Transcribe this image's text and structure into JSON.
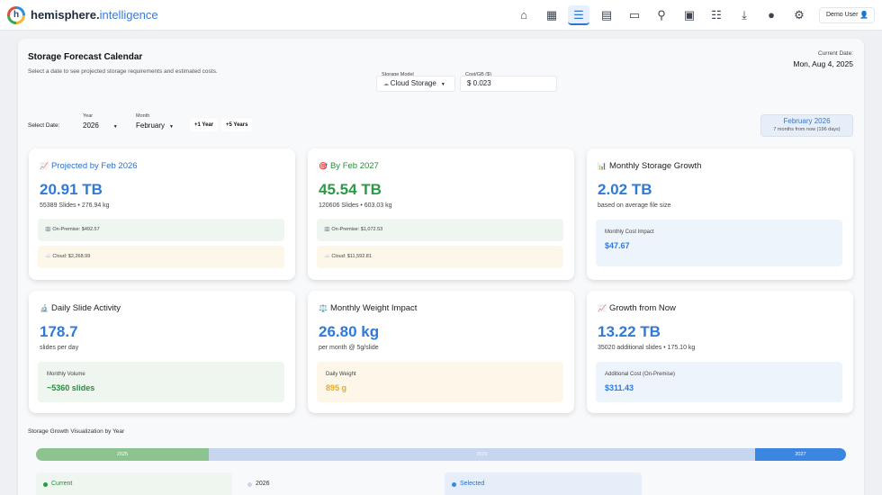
{
  "app": {
    "brand_main": "hemisphere.",
    "brand_accent": "intelligence",
    "logo_letter": "h",
    "user_label": "Demo User",
    "nav_icons": [
      "home-icon",
      "dashboard-icon",
      "list-icon",
      "calendar-icon",
      "folder-icon",
      "microscope-icon",
      "clipboard-icon",
      "sliders-icon",
      "download-icon",
      "account-icon",
      "gear-icon"
    ],
    "colors": {
      "accent": "#2f74d0",
      "green": "#2b9a44",
      "yellow": "#f2b632"
    }
  },
  "page": {
    "title": "Storage Forecast Calendar",
    "subtitle": "Select a date to see projected storage requirements and estimated costs.",
    "current_date_label": "Current Date:",
    "current_date": "Mon, Aug 4, 2025"
  },
  "controls": {
    "storage_model_label": "Storage Model",
    "storage_model_value": "Cloud Storage",
    "cost_label": "Cost/GB ($)",
    "cost_value": "$ 0.023",
    "select_date_label": "Select Date:",
    "year_label": "Year",
    "year_value": "2026",
    "month_label": "Month",
    "month_value": "February",
    "plus_one_year": "+1 Year",
    "plus_five_years": "+5 Years",
    "selected_month": "February 2026",
    "selected_offset": "7 months from now (196 days)"
  },
  "cards": {
    "projected": {
      "icon": "📈",
      "title": "Projected by Feb 2026",
      "value": "20.91 TB",
      "sub": "55389 Slides • 276.94 kg",
      "onprem": "🏢 On-Premise: $492.57",
      "cloud": "☁️ Cloud: $2,268.99"
    },
    "target": {
      "icon": "🎯",
      "title": "By Feb 2027",
      "value": "45.54 TB",
      "sub": "120606 Slides • 603.03 kg",
      "onprem": "🏢 On-Premise: $1,072.53",
      "cloud": "☁️ Cloud: $11,592.81"
    },
    "growth": {
      "icon": "📊",
      "title": "Monthly Storage Growth",
      "value": "2.02 TB",
      "sub": "based on average file size",
      "box_label": "Monthly Cost Impact",
      "box_value": "$47.67"
    },
    "daily": {
      "icon": "🔬",
      "title": "Daily Slide Activity",
      "value": "178.7",
      "sub": "slides per day",
      "box_label": "Monthly Volume",
      "box_value": "~5360 slides"
    },
    "weight": {
      "icon": "⚖️",
      "title": "Monthly Weight Impact",
      "value": "26.80 kg",
      "sub": "per month @ 5g/slide",
      "box_label": "Daily Weight",
      "box_value": "895 g"
    },
    "fromnow": {
      "icon": "📈",
      "title": "Growth from Now",
      "value": "13.22 TB",
      "sub": "35020 additional slides • 175.10 kg",
      "box_label": "Additional Cost (On-Premise)",
      "box_value": "$311.43"
    }
  },
  "viz": {
    "title": "Storage Growth Visualization by Year",
    "years": [
      "2025",
      "2026",
      "2027"
    ],
    "legend_current": "Current",
    "legend_year": "2026",
    "legend_selected": "Selected"
  }
}
